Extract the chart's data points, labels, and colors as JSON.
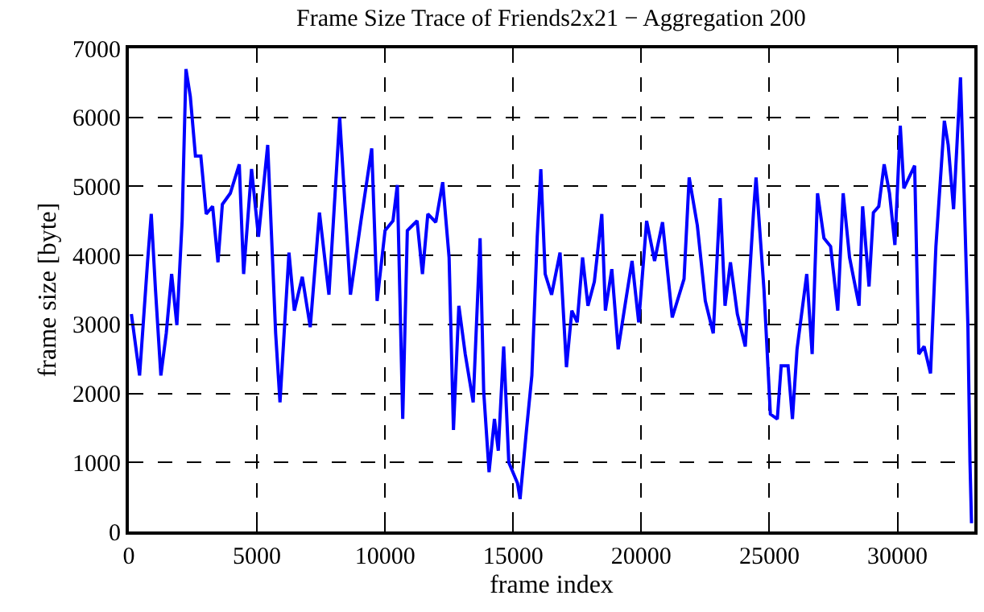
{
  "chart_data": {
    "type": "line",
    "title": "Frame Size Trace of Friends2x21 − Aggregation 200",
    "xlabel": "frame index",
    "ylabel": "frame size [byte]",
    "x": [
      100,
      420,
      730,
      875,
      1040,
      1250,
      1460,
      1670,
      1875,
      2080,
      2230,
      2400,
      2600,
      2810,
      3020,
      3270,
      3480,
      3650,
      3960,
      4310,
      4480,
      4790,
      5060,
      5420,
      5730,
      5900,
      6250,
      6460,
      6770,
      7080,
      7440,
      7810,
      8230,
      8650,
      9060,
      9480,
      9690,
      10000,
      10310,
      10480,
      10690,
      10870,
      11250,
      11460,
      11670,
      11980,
      12250,
      12500,
      12670,
      12880,
      13130,
      13440,
      13710,
      13850,
      14060,
      14270,
      14420,
      14630,
      14830,
      15170,
      15270,
      15520,
      15730,
      15940,
      16080,
      16250,
      16500,
      16830,
      17080,
      17290,
      17500,
      17710,
      17920,
      18170,
      18460,
      18600,
      18850,
      19100,
      19380,
      19640,
      19900,
      20210,
      20520,
      20830,
      21210,
      21670,
      21870,
      22190,
      22500,
      22810,
      23080,
      23270,
      23480,
      23750,
      24060,
      24380,
      24480,
      24790,
      25040,
      25310,
      25460,
      25730,
      25900,
      26080,
      26460,
      26670,
      26880,
      27130,
      27390,
      27670,
      27880,
      28130,
      28500,
      28640,
      28890,
      29060,
      29270,
      29480,
      29690,
      29900,
      30110,
      30250,
      30670,
      30830,
      31040,
      31290,
      31500,
      31830,
      31980,
      32190,
      32460,
      32600,
      32750,
      32830,
      32890
    ],
    "series": [
      {
        "color": "#0000ff",
        "values": [
          3150,
          2260,
          3900,
          4600,
          3500,
          2260,
          2870,
          3730,
          2990,
          4500,
          6700,
          6300,
          5440,
          5440,
          4600,
          4710,
          3900,
          4740,
          4900,
          5320,
          3730,
          5250,
          4270,
          5600,
          2870,
          1870,
          4040,
          3200,
          3690,
          2960,
          4620,
          3430,
          6000,
          3430,
          4500,
          5550,
          3340,
          4360,
          4500,
          5020,
          1630,
          4360,
          4500,
          3730,
          4600,
          4480,
          5060,
          3970,
          1470,
          3270,
          2570,
          1870,
          4250,
          2030,
          860,
          1630,
          1170,
          2680,
          1000,
          700,
          470,
          1470,
          2260,
          4270,
          5250,
          3730,
          3430,
          4040,
          2380,
          3200,
          3030,
          3970,
          3270,
          3620,
          4600,
          3200,
          3800,
          2640,
          3310,
          3920,
          3030,
          4500,
          3920,
          4480,
          3100,
          3660,
          5130,
          4430,
          3340,
          2870,
          4830,
          3270,
          3900,
          3150,
          2680,
          4620,
          5130,
          3500,
          1700,
          1630,
          2400,
          2400,
          1630,
          2640,
          3730,
          2570,
          4900,
          4250,
          4130,
          3200,
          4900,
          3970,
          3270,
          4710,
          3550,
          4620,
          4710,
          5320,
          4900,
          4150,
          5880,
          4970,
          5300,
          2570,
          2680,
          2290,
          4130,
          5950,
          5600,
          4670,
          6580,
          4900,
          2960,
          1000,
          120
        ]
      }
    ],
    "xlim": [
      0,
      33000
    ],
    "xticks": [
      0,
      5000,
      10000,
      15000,
      20000,
      25000,
      30000
    ],
    "ylim": [
      0,
      7000
    ],
    "yticks": [
      0,
      1000,
      2000,
      3000,
      4000,
      5000,
      6000,
      7000
    ],
    "grid": true
  }
}
